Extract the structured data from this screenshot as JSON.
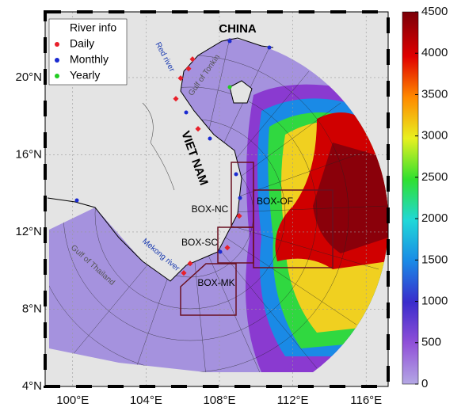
{
  "map": {
    "xlim": [
      98.5,
      117.2
    ],
    "ylim": [
      4,
      23.4
    ],
    "lon_ticks": [
      {
        "value": 100,
        "label": "100°E"
      },
      {
        "value": 104,
        "label": "104°E"
      },
      {
        "value": 108,
        "label": "108°E"
      },
      {
        "value": 112,
        "label": "112°E"
      },
      {
        "value": 116,
        "label": "116°E"
      }
    ],
    "lat_ticks": [
      {
        "value": 4,
        "label": "4°N"
      },
      {
        "value": 8,
        "label": "8°N"
      },
      {
        "value": 12,
        "label": "12°N"
      },
      {
        "value": 16,
        "label": "16°N"
      },
      {
        "value": 20,
        "label": "20°N"
      }
    ],
    "labels": {
      "china": "CHINA",
      "vietnam": "VIET NAM",
      "red_river": "Red river",
      "gulf_tonkin": "Gulf of Tonkin",
      "mekong": "Mekong river",
      "gulf_thailand": "Gulf of Thailand"
    },
    "boxes": [
      "BOX-NC",
      "BOX-SC",
      "BOX-MK",
      "BOX-OF"
    ]
  },
  "legend": {
    "title": "River info",
    "entries": [
      {
        "label": "Daily",
        "color": "#e8202a"
      },
      {
        "label": "Monthly",
        "color": "#1a2ad0"
      },
      {
        "label": "Yearly",
        "color": "#22cc22"
      }
    ]
  },
  "colorbar": {
    "lim": [
      0,
      4500
    ],
    "ticks": [
      0,
      500,
      1000,
      1500,
      2000,
      2500,
      3000,
      3500,
      4000,
      4500
    ]
  }
}
